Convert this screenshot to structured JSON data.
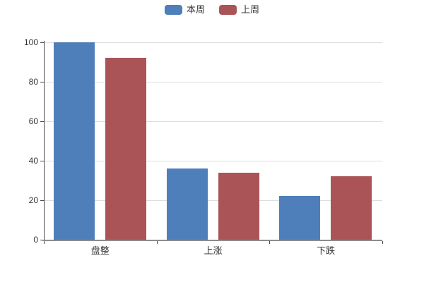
{
  "chart_data": {
    "type": "bar",
    "title": "",
    "xlabel": "",
    "ylabel": "",
    "categories": [
      "盘整",
      "上涨",
      "下跌"
    ],
    "series": [
      {
        "name": "本周",
        "color": "#4e7fba",
        "values": [
          100,
          36,
          22
        ]
      },
      {
        "name": "上周",
        "color": "#ab5458",
        "values": [
          92,
          34,
          32
        ]
      }
    ],
    "ylim": [
      0,
      100
    ],
    "y_ticks": [
      0,
      20,
      40,
      60,
      80,
      100
    ],
    "grid": true,
    "legend_position": "top-center"
  }
}
